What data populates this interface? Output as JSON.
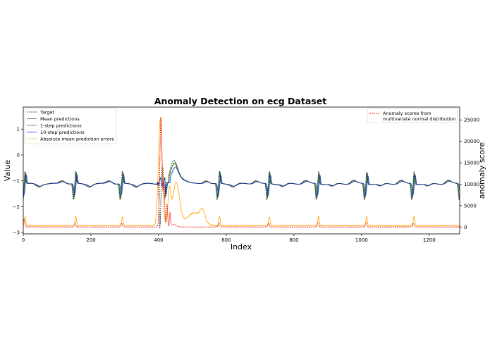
{
  "chart_data": {
    "type": "line",
    "title": "Anomaly Detection on ecg Dataset",
    "xlabel": "Index",
    "ylabel": "Value",
    "y2label": "anomaly score",
    "xlim": [
      0,
      1290
    ],
    "ylim": [
      -3.05,
      1.85
    ],
    "y2lim": [
      -1600,
      28000
    ],
    "xticks": [
      "0",
      "200",
      "400",
      "600",
      "800",
      "1000",
      "1200"
    ],
    "yticks": [
      "−3",
      "−2",
      "−1",
      "0",
      "1"
    ],
    "y2ticks": [
      "0",
      "5000",
      "10000",
      "15000",
      "20000",
      "25000"
    ],
    "legend_left": [
      "Target",
      "Mean predictions",
      "1-step predictions",
      "10-step predictions",
      "Absolute mean prediction errors"
    ],
    "legend_right": [
      "Anomaly scores from",
      "multivariate normal distribution"
    ],
    "beats": [
      0,
      150,
      288,
      420,
      575,
      722,
      868,
      1010,
      1150,
      1290
    ],
    "anomaly_spike": {
      "index": 407,
      "score": 26000
    },
    "colors": {
      "target": "#222222",
      "mean": "#3a7d3a",
      "one_step": "#2ca02c",
      "ten_step": "#1f3fd6",
      "error": "#ffa500",
      "anomaly": "#ee1111"
    }
  }
}
